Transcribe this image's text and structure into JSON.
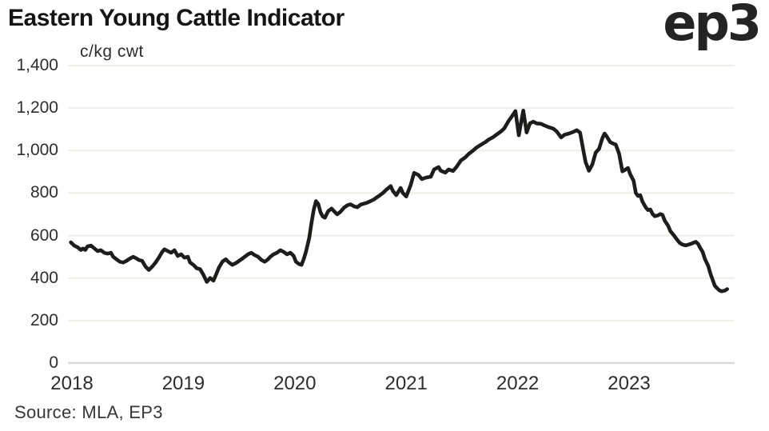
{
  "header": {
    "title": "Eastern Young Cattle Indicator",
    "logo": "ep3"
  },
  "footer": {
    "source": "Source: MLA, EP3"
  },
  "colors": {
    "background": "#ffffff",
    "line": "#1d1d1b",
    "gridline": "#f0eee7",
    "axis_line": "#d9d9d9",
    "text_primary": "#151515",
    "text_secondary": "#2d2d2d"
  },
  "chart_data": {
    "type": "line",
    "title": "Eastern Young Cattle Indicator",
    "xlabel": "",
    "ylabel": "c/kg cwt",
    "ylim": [
      0,
      1400
    ],
    "xlim": [
      2017.96,
      2023.97
    ],
    "grid": "horizontal",
    "legend": "none",
    "y_ticks": [
      {
        "value": 0,
        "label": "0"
      },
      {
        "value": 200,
        "label": "200"
      },
      {
        "value": 400,
        "label": "400"
      },
      {
        "value": 600,
        "label": "600"
      },
      {
        "value": 800,
        "label": "800"
      },
      {
        "value": 1000,
        "label": "1,000"
      },
      {
        "value": 1200,
        "label": "1,200"
      },
      {
        "value": 1400,
        "label": "1,400"
      }
    ],
    "x_ticks": [
      {
        "value": 2018,
        "label": "2018"
      },
      {
        "value": 2019,
        "label": "2019"
      },
      {
        "value": 2020,
        "label": "2020"
      },
      {
        "value": 2021,
        "label": "2021"
      },
      {
        "value": 2022,
        "label": "2022"
      },
      {
        "value": 2023,
        "label": "2023"
      }
    ],
    "series": [
      {
        "name": "Eastern Young Cattle Indicator (c/kg cwt)",
        "color": "#1d1d1b",
        "points": [
          [
            2017.99,
            568
          ],
          [
            2018.02,
            553
          ],
          [
            2018.05,
            545
          ],
          [
            2018.08,
            532
          ],
          [
            2018.1,
            539
          ],
          [
            2018.12,
            532
          ],
          [
            2018.14,
            549
          ],
          [
            2018.17,
            553
          ],
          [
            2018.2,
            540
          ],
          [
            2018.23,
            527
          ],
          [
            2018.26,
            531
          ],
          [
            2018.29,
            519
          ],
          [
            2018.32,
            515
          ],
          [
            2018.35,
            519
          ],
          [
            2018.37,
            500
          ],
          [
            2018.4,
            488
          ],
          [
            2018.43,
            477
          ],
          [
            2018.46,
            473
          ],
          [
            2018.49,
            481
          ],
          [
            2018.52,
            492
          ],
          [
            2018.55,
            500
          ],
          [
            2018.58,
            492
          ],
          [
            2018.6,
            485
          ],
          [
            2018.63,
            481
          ],
          [
            2018.66,
            454
          ],
          [
            2018.69,
            438
          ],
          [
            2018.72,
            454
          ],
          [
            2018.75,
            473
          ],
          [
            2018.78,
            496
          ],
          [
            2018.81,
            523
          ],
          [
            2018.83,
            535
          ],
          [
            2018.86,
            527
          ],
          [
            2018.89,
            519
          ],
          [
            2018.92,
            531
          ],
          [
            2018.95,
            504
          ],
          [
            2018.98,
            512
          ],
          [
            2019.01,
            496
          ],
          [
            2019.04,
            500
          ],
          [
            2019.06,
            473
          ],
          [
            2019.09,
            462
          ],
          [
            2019.12,
            446
          ],
          [
            2019.15,
            442
          ],
          [
            2019.18,
            415
          ],
          [
            2019.21,
            382
          ],
          [
            2019.24,
            400
          ],
          [
            2019.27,
            388
          ],
          [
            2019.29,
            412
          ],
          [
            2019.32,
            450
          ],
          [
            2019.35,
            477
          ],
          [
            2019.38,
            488
          ],
          [
            2019.41,
            473
          ],
          [
            2019.44,
            462
          ],
          [
            2019.47,
            470
          ],
          [
            2019.5,
            481
          ],
          [
            2019.53,
            492
          ],
          [
            2019.55,
            500
          ],
          [
            2019.58,
            512
          ],
          [
            2019.61,
            519
          ],
          [
            2019.64,
            508
          ],
          [
            2019.67,
            500
          ],
          [
            2019.7,
            485
          ],
          [
            2019.73,
            477
          ],
          [
            2019.76,
            488
          ],
          [
            2019.78,
            500
          ],
          [
            2019.81,
            512
          ],
          [
            2019.84,
            519
          ],
          [
            2019.87,
            531
          ],
          [
            2019.9,
            523
          ],
          [
            2019.93,
            512
          ],
          [
            2019.96,
            519
          ],
          [
            2019.99,
            504
          ],
          [
            2020.01,
            477
          ],
          [
            2020.04,
            465
          ],
          [
            2020.06,
            462
          ],
          [
            2020.08,
            490
          ],
          [
            2020.1,
            523
          ],
          [
            2020.13,
            590
          ],
          [
            2020.15,
            660
          ],
          [
            2020.17,
            722
          ],
          [
            2020.19,
            762
          ],
          [
            2020.21,
            749
          ],
          [
            2020.23,
            710
          ],
          [
            2020.25,
            690
          ],
          [
            2020.27,
            684
          ],
          [
            2020.3,
            715
          ],
          [
            2020.33,
            727
          ],
          [
            2020.36,
            710
          ],
          [
            2020.38,
            700
          ],
          [
            2020.41,
            712
          ],
          [
            2020.44,
            730
          ],
          [
            2020.47,
            742
          ],
          [
            2020.5,
            747
          ],
          [
            2020.53,
            738
          ],
          [
            2020.56,
            733
          ],
          [
            2020.59,
            745
          ],
          [
            2020.62,
            750
          ],
          [
            2020.65,
            755
          ],
          [
            2020.68,
            762
          ],
          [
            2020.71,
            770
          ],
          [
            2020.73,
            778
          ],
          [
            2020.76,
            788
          ],
          [
            2020.79,
            800
          ],
          [
            2020.82,
            815
          ],
          [
            2020.86,
            833
          ],
          [
            2020.88,
            810
          ],
          [
            2020.91,
            790
          ],
          [
            2020.95,
            824
          ],
          [
            2020.97,
            800
          ],
          [
            2021.0,
            784
          ],
          [
            2021.04,
            838
          ],
          [
            2021.07,
            895
          ],
          [
            2021.11,
            885
          ],
          [
            2021.14,
            866
          ],
          [
            2021.18,
            873
          ],
          [
            2021.22,
            877
          ],
          [
            2021.25,
            911
          ],
          [
            2021.29,
            922
          ],
          [
            2021.31,
            905
          ],
          [
            2021.35,
            896
          ],
          [
            2021.38,
            911
          ],
          [
            2021.42,
            904
          ],
          [
            2021.45,
            922
          ],
          [
            2021.49,
            953
          ],
          [
            2021.53,
            968
          ],
          [
            2021.56,
            984
          ],
          [
            2021.6,
            1000
          ],
          [
            2021.63,
            1014
          ],
          [
            2021.67,
            1027
          ],
          [
            2021.71,
            1040
          ],
          [
            2021.74,
            1052
          ],
          [
            2021.78,
            1063
          ],
          [
            2021.81,
            1075
          ],
          [
            2021.85,
            1090
          ],
          [
            2021.88,
            1105
          ],
          [
            2021.92,
            1140
          ],
          [
            2021.96,
            1170
          ],
          [
            2021.98,
            1186
          ],
          [
            2022.01,
            1072
          ],
          [
            2022.05,
            1188
          ],
          [
            2022.08,
            1085
          ],
          [
            2022.11,
            1128
          ],
          [
            2022.14,
            1136
          ],
          [
            2022.17,
            1128
          ],
          [
            2022.21,
            1126
          ],
          [
            2022.24,
            1118
          ],
          [
            2022.28,
            1110
          ],
          [
            2022.32,
            1103
          ],
          [
            2022.35,
            1090
          ],
          [
            2022.39,
            1062
          ],
          [
            2022.42,
            1074
          ],
          [
            2022.46,
            1080
          ],
          [
            2022.5,
            1088
          ],
          [
            2022.53,
            1096
          ],
          [
            2022.56,
            1084
          ],
          [
            2022.59,
            1000
          ],
          [
            2022.61,
            945
          ],
          [
            2022.64,
            905
          ],
          [
            2022.67,
            935
          ],
          [
            2022.7,
            990
          ],
          [
            2022.73,
            1008
          ],
          [
            2022.76,
            1058
          ],
          [
            2022.78,
            1080
          ],
          [
            2022.8,
            1066
          ],
          [
            2022.83,
            1040
          ],
          [
            2022.86,
            1032
          ],
          [
            2022.88,
            1028
          ],
          [
            2022.91,
            985
          ],
          [
            2022.94,
            902
          ],
          [
            2022.96,
            908
          ],
          [
            2022.99,
            918
          ],
          [
            2023.01,
            888
          ],
          [
            2023.04,
            858
          ],
          [
            2023.06,
            800
          ],
          [
            2023.08,
            786
          ],
          [
            2023.1,
            790
          ],
          [
            2023.12,
            760
          ],
          [
            2023.15,
            732
          ],
          [
            2023.17,
            720
          ],
          [
            2023.19,
            723
          ],
          [
            2023.21,
            702
          ],
          [
            2023.23,
            691
          ],
          [
            2023.26,
            695
          ],
          [
            2023.28,
            701
          ],
          [
            2023.3,
            697
          ],
          [
            2023.32,
            670
          ],
          [
            2023.35,
            646
          ],
          [
            2023.37,
            621
          ],
          [
            2023.4,
            602
          ],
          [
            2023.43,
            581
          ],
          [
            2023.45,
            568
          ],
          [
            2023.47,
            560
          ],
          [
            2023.49,
            556
          ],
          [
            2023.51,
            554
          ],
          [
            2023.53,
            557
          ],
          [
            2023.56,
            562
          ],
          [
            2023.58,
            567
          ],
          [
            2023.6,
            570
          ],
          [
            2023.62,
            560
          ],
          [
            2023.64,
            540
          ],
          [
            2023.66,
            523
          ],
          [
            2023.68,
            490
          ],
          [
            2023.71,
            457
          ],
          [
            2023.73,
            420
          ],
          [
            2023.75,
            391
          ],
          [
            2023.77,
            363
          ],
          [
            2023.79,
            352
          ],
          [
            2023.81,
            342
          ],
          [
            2023.83,
            338
          ],
          [
            2023.86,
            341
          ],
          [
            2023.88,
            348
          ]
        ]
      }
    ]
  }
}
